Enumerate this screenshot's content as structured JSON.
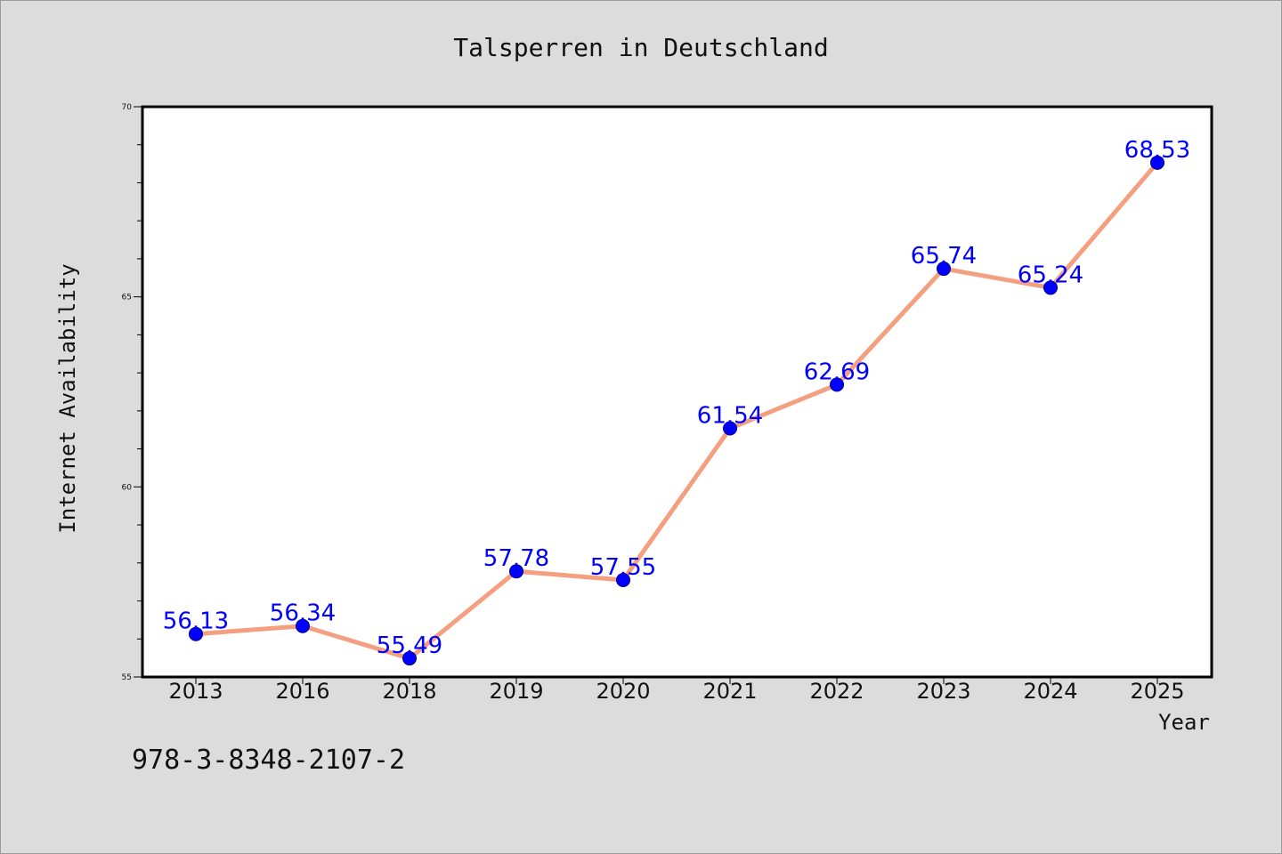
{
  "chart_data": {
    "type": "line",
    "title": "Talsperren in Deutschland",
    "xlabel": "Year",
    "ylabel": "Internet Availability",
    "categories": [
      "2013",
      "2016",
      "2018",
      "2019",
      "2020",
      "2021",
      "2022",
      "2023",
      "2024",
      "2025"
    ],
    "series": [
      {
        "values": [
          56.13,
          56.34,
          55.49,
          57.78,
          57.55,
          61.54,
          62.69,
          65.74,
          65.24,
          68.53
        ]
      }
    ],
    "data_labels": [
      "56.13",
      "56.34",
      "55.49",
      "57.78",
      "57.55",
      "61.54",
      "62.69",
      "65.74",
      "65.24",
      "68.53"
    ],
    "ylim": [
      55,
      70
    ],
    "yticks": [
      "55",
      "60",
      "65",
      "70"
    ],
    "grid": false,
    "line_color": "#f4a080",
    "marker_color": "#0000ff",
    "label_color": "#0000ff"
  },
  "footer": {
    "isbn": "978-3-8348-2107-2"
  }
}
